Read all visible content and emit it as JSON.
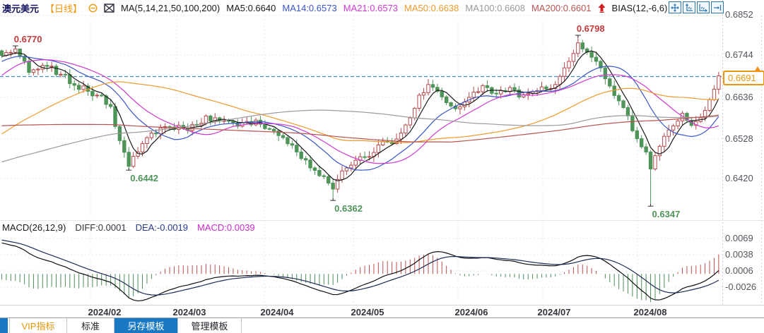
{
  "header": {
    "symbol": "澳元美元",
    "symbol_color": "#151560",
    "period": "【日线】",
    "period_color": "#f0960f",
    "ma_settings": "MA(5,14,21,50,100,200)",
    "ma_settings_color": "#1a1a1a",
    "ma_values": [
      {
        "label": "MA5:0.6640",
        "color": "#1a1a1a"
      },
      {
        "label": "MA14:0.6573",
        "color": "#3a56c8"
      },
      {
        "label": "MA21:0.6573",
        "color": "#cf3ad0"
      },
      {
        "label": "MA50:0.6638",
        "color": "#ef9a2e"
      },
      {
        "label": "MA100:0.6608",
        "color": "#9a9a9a"
      },
      {
        "label": "MA200:0.6601",
        "color": "#b85450"
      }
    ],
    "bias": "BIAS(12,-6,6)",
    "bias_color": "#1a1a1a"
  },
  "icons": {
    "collapse-icon": "circle-minus ⊖ orange",
    "snapshot-icon": "small image/chart frame, navy",
    "signal-up-icon": "solid red up arrow ⬆",
    "pan-icon": "cross with arrowheads ✛",
    "y-scale-icon": "axis with up arrow",
    "x-scale-icon": "axis with right arrow",
    "shift-right-icon": "arrow into right bar ⇥"
  },
  "macd_header": {
    "label": "MACD(26,12,9)",
    "label_color": "#1a1a1a",
    "diff": "DIFF:0.0001",
    "diff_color": "#33343c",
    "dea": "DEA:-0.0019",
    "dea_color": "#2a3a8c",
    "macd": "MACD:0.0039",
    "macd_color": "#cc2ccc"
  },
  "tabs": {
    "active_bg": "#1878c4",
    "items": [
      {
        "label": "VIP指标",
        "active": false,
        "color": "#e8960c"
      },
      {
        "label": "标准",
        "active": false,
        "color": "#23262b"
      },
      {
        "label": "另存模板",
        "active": true,
        "color": "#ffffff"
      },
      {
        "label": "管理模板",
        "active": false,
        "color": "#23262b"
      }
    ]
  },
  "chart_data": [
    {
      "type": "candlestick",
      "pane": "price",
      "symbol": "澳元美元",
      "timeframe": "日线",
      "x_ticks": [
        "2024/02",
        "2024/03",
        "2024/04",
        "2024/05",
        "2024/06",
        "2024/07",
        "2024/08"
      ],
      "y_ticks": [
        "0.6852",
        "0.6744",
        "0.6636",
        "0.6528",
        "0.6420"
      ],
      "y_range": [
        0.633,
        0.686
      ],
      "grid": true,
      "last_price": 0.6691,
      "last_price_label": "0.6691",
      "last_price_line_color": "#4a8fc0",
      "up_color": "#b5494b",
      "down_color": "#4f9458",
      "moving_averages": [
        {
          "name": "MA5",
          "value": 0.664,
          "color": "#1a1a1a"
        },
        {
          "name": "MA14",
          "value": 0.6573,
          "color": "#3a56c8"
        },
        {
          "name": "MA21",
          "value": 0.6573,
          "color": "#cf3ad0"
        },
        {
          "name": "MA50",
          "value": 0.6638,
          "color": "#ef9a2e"
        },
        {
          "name": "MA100",
          "value": 0.6608,
          "color": "#9a9a9a"
        },
        {
          "name": "MA200",
          "value": 0.6601,
          "color": "#b85450"
        }
      ],
      "close_anchors": [
        [
          0,
          0.6745
        ],
        [
          3,
          0.6762
        ],
        [
          6,
          0.67
        ],
        [
          10,
          0.6716
        ],
        [
          13,
          0.6695
        ],
        [
          16,
          0.6666
        ],
        [
          19,
          0.665
        ],
        [
          22,
          0.6638
        ],
        [
          24,
          0.661
        ],
        [
          26,
          0.652
        ],
        [
          28,
          0.6452
        ],
        [
          30,
          0.649
        ],
        [
          33,
          0.654
        ],
        [
          36,
          0.6557
        ],
        [
          40,
          0.6552
        ],
        [
          43,
          0.656
        ],
        [
          45,
          0.6585
        ],
        [
          48,
          0.6572
        ],
        [
          52,
          0.6558
        ],
        [
          56,
          0.6574
        ],
        [
          59,
          0.655
        ],
        [
          62,
          0.6528
        ],
        [
          65,
          0.649
        ],
        [
          68,
          0.6448
        ],
        [
          71,
          0.6425
        ],
        [
          73,
          0.6392
        ],
        [
          75,
          0.644
        ],
        [
          78,
          0.6468
        ],
        [
          81,
          0.6478
        ],
        [
          84,
          0.6518
        ],
        [
          86,
          0.6512
        ],
        [
          88,
          0.654
        ],
        [
          90,
          0.658
        ],
        [
          92,
          0.664
        ],
        [
          94,
          0.6668
        ],
        [
          96,
          0.665
        ],
        [
          98,
          0.662
        ],
        [
          100,
          0.6604
        ],
        [
          102,
          0.6622
        ],
        [
          104,
          0.6648
        ],
        [
          106,
          0.6665
        ],
        [
          108,
          0.6645
        ],
        [
          110,
          0.6652
        ],
        [
          112,
          0.666
        ],
        [
          114,
          0.6635
        ],
        [
          116,
          0.6644
        ],
        [
          118,
          0.6652
        ],
        [
          120,
          0.6656
        ],
        [
          122,
          0.6668
        ],
        [
          124,
          0.6712
        ],
        [
          126,
          0.675
        ],
        [
          127,
          0.6778
        ],
        [
          128,
          0.6762
        ],
        [
          130,
          0.674
        ],
        [
          132,
          0.6712
        ],
        [
          134,
          0.6664
        ],
        [
          136,
          0.6625
        ],
        [
          138,
          0.6585
        ],
        [
          140,
          0.6525
        ],
        [
          142,
          0.649
        ],
        [
          143,
          0.6445
        ],
        [
          145,
          0.6505
        ],
        [
          147,
          0.6548
        ],
        [
          149,
          0.6572
        ],
        [
          150,
          0.6592
        ],
        [
          152,
          0.656
        ],
        [
          154,
          0.658
        ],
        [
          156,
          0.6628
        ],
        [
          158,
          0.6691
        ]
      ],
      "key_points": [
        {
          "day": 3,
          "field": "high",
          "price": 0.677
        },
        {
          "day": 28,
          "field": "low",
          "price": 0.6442
        },
        {
          "day": 73,
          "field": "low",
          "price": 0.6362
        },
        {
          "day": 127,
          "field": "high",
          "price": 0.6798
        },
        {
          "day": 143,
          "field": "low",
          "price": 0.6347
        },
        {
          "day": 158,
          "field": "close",
          "price": 0.6691
        }
      ],
      "annotations": [
        {
          "text": "0.6770",
          "day": 3,
          "price": 0.677,
          "placement": "above",
          "color": "#c23a3a"
        },
        {
          "text": "0.6798",
          "day": 127,
          "price": 0.6798,
          "placement": "above",
          "color": "#c23a3a"
        },
        {
          "text": "0.6442",
          "day": 28,
          "price": 0.6442,
          "placement": "below",
          "color": "#4f9458"
        },
        {
          "text": "0.6362",
          "day": 73,
          "price": 0.6362,
          "placement": "below",
          "color": "#4f9458"
        },
        {
          "text": "0.6347",
          "day": 143,
          "price": 0.6347,
          "placement": "below",
          "color": "#4f9458"
        }
      ]
    },
    {
      "type": "macd-histogram",
      "pane": "macd",
      "params": "(26,12,9)",
      "diff": 0.0001,
      "dea": -0.0019,
      "macd": 0.0039,
      "y_ticks": [
        "0.0069",
        "0.0038",
        "0.0006",
        "-0.0026"
      ],
      "pos_color": "#c0504d",
      "neg_color": "#4e8d57",
      "diff_color": "#101014",
      "dea_color": "#1d2b56"
    }
  ]
}
